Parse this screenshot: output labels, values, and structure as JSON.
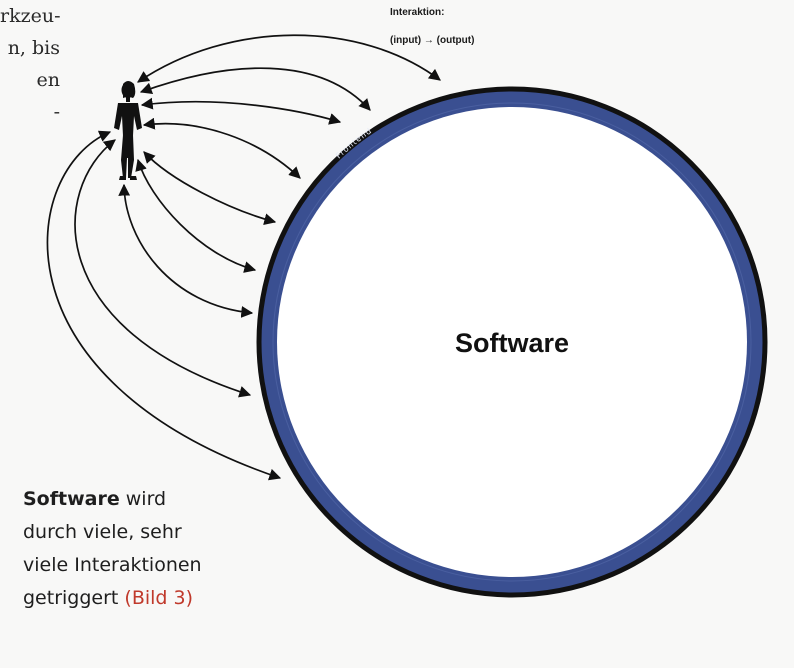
{
  "body_text_fragments": [
    "rkzeu-",
    "n, bis",
    "en",
    "-"
  ],
  "interaction": {
    "title": "Interaktion:",
    "flow": "(input) → (output)"
  },
  "diagram": {
    "center_label": "Software",
    "ring_label": "Frontend",
    "colors": {
      "ring": "#3a4f91",
      "ring_outline": "#111111",
      "inner": "#ffffff",
      "arrows": "#111111"
    }
  },
  "caption": {
    "bold": "Software",
    "line1_rest": " wird",
    "line2": "durch viele, sehr",
    "line3": "viele Interaktionen",
    "line4_prefix": "getriggert ",
    "reference": "(Bild 3)",
    "reference_color": "#c0392b"
  }
}
